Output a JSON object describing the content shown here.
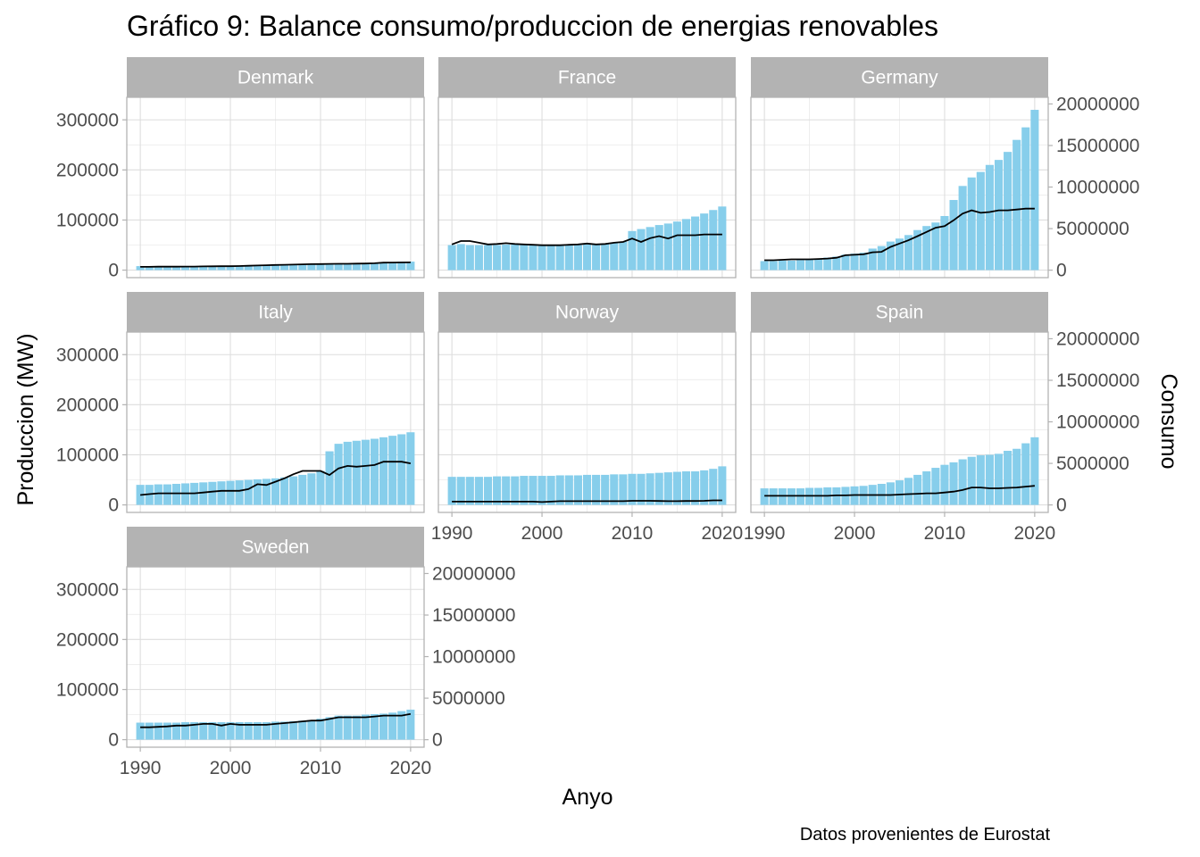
{
  "chart_data": {
    "type": "bar",
    "title": "Gráfico 9: Balance consumo/produccion de energias renovables",
    "xlabel": "Anyo",
    "ylabel": "Produccion (MW)",
    "y2label": "Consumo",
    "caption": "Datos provenientes de Eurostat",
    "xlim": [
      1988.5,
      2021.5
    ],
    "ylim": [
      -15000,
      345000
    ],
    "y2lim": [
      -900000,
      20800000
    ],
    "x_ticks": [
      1990,
      2000,
      2010,
      2020
    ],
    "y_ticks": [
      0,
      100000,
      200000,
      300000
    ],
    "y2_ticks": [
      0,
      5000000,
      10000000,
      15000000,
      20000000
    ],
    "x_tick_labels": [
      "1990",
      "2000",
      "2010",
      "2020"
    ],
    "y_tick_labels": [
      "0",
      "100000",
      "200000",
      "300000"
    ],
    "y2_tick_labels": [
      "0",
      "5000000",
      "10000000",
      "15000000",
      "20000000"
    ],
    "years": [
      1990,
      1991,
      1992,
      1993,
      1994,
      1995,
      1996,
      1997,
      1998,
      1999,
      2000,
      2001,
      2002,
      2003,
      2004,
      2005,
      2006,
      2007,
      2008,
      2009,
      2010,
      2011,
      2012,
      2013,
      2014,
      2015,
      2016,
      2017,
      2018,
      2019,
      2020
    ],
    "bar_color": "#87CEEB",
    "line_color": "#000000",
    "grid": true,
    "panels": [
      {
        "country": "Denmark",
        "production": [
          8000,
          8000,
          8000,
          8000,
          8000,
          8000,
          8000,
          9000,
          9000,
          9000,
          9000,
          9000,
          10000,
          10000,
          10000,
          10000,
          11000,
          11000,
          11000,
          12000,
          12000,
          12000,
          12000,
          12000,
          12000,
          13000,
          14000,
          16000,
          16000,
          17000,
          17000
        ],
        "consumption": [
          400000,
          400000,
          420000,
          420000,
          420000,
          430000,
          430000,
          450000,
          460000,
          470000,
          480000,
          500000,
          530000,
          560000,
          590000,
          630000,
          650000,
          670000,
          700000,
          720000,
          730000,
          750000,
          760000,
          770000,
          790000,
          800000,
          830000,
          900000,
          920000,
          930000,
          940000
        ]
      },
      {
        "country": "France",
        "production": [
          50000,
          52000,
          50000,
          50000,
          50000,
          50000,
          51000,
          51000,
          51000,
          50000,
          50000,
          49000,
          49000,
          50000,
          50000,
          51000,
          52000,
          53000,
          55000,
          57000,
          78000,
          82000,
          86000,
          90000,
          93000,
          97000,
          102000,
          107000,
          113000,
          120000,
          127000
        ],
        "consumption": [
          3100000,
          3500000,
          3500000,
          3300000,
          3100000,
          3150000,
          3250000,
          3150000,
          3100000,
          3050000,
          3000000,
          3000000,
          3000000,
          3050000,
          3100000,
          3200000,
          3100000,
          3150000,
          3300000,
          3400000,
          3800000,
          3400000,
          3850000,
          4100000,
          3800000,
          4200000,
          4200000,
          4200000,
          4300000,
          4300000,
          4300000
        ]
      },
      {
        "country": "Germany",
        "production": [
          18000,
          18000,
          19000,
          19000,
          20000,
          21000,
          22000,
          25000,
          27000,
          31000,
          33000,
          35000,
          43000,
          48000,
          57000,
          63000,
          70000,
          80000,
          88000,
          95000,
          108000,
          140000,
          168000,
          185000,
          196000,
          210000,
          220000,
          236000,
          260000,
          285000,
          320000
        ],
        "consumption": [
          1200000,
          1200000,
          1250000,
          1300000,
          1300000,
          1300000,
          1350000,
          1400000,
          1500000,
          1800000,
          1850000,
          1900000,
          2150000,
          2200000,
          2800000,
          3200000,
          3600000,
          4100000,
          4600000,
          5100000,
          5300000,
          6000000,
          6800000,
          7200000,
          6900000,
          7000000,
          7200000,
          7200000,
          7300000,
          7400000,
          7400000
        ]
      },
      {
        "country": "Italy",
        "production": [
          40000,
          40000,
          41000,
          41000,
          42000,
          43000,
          44000,
          45000,
          46000,
          47000,
          48000,
          49000,
          50000,
          51000,
          52000,
          53000,
          55000,
          57000,
          60000,
          63000,
          68000,
          107000,
          122000,
          126000,
          128000,
          130000,
          132000,
          135000,
          138000,
          141000,
          145000
        ],
        "consumption": [
          1200000,
          1300000,
          1400000,
          1400000,
          1400000,
          1400000,
          1400000,
          1500000,
          1600000,
          1700000,
          1700000,
          1700000,
          1900000,
          2500000,
          2400000,
          2800000,
          3200000,
          3700000,
          4100000,
          4100000,
          4100000,
          3600000,
          4400000,
          4700000,
          4600000,
          4700000,
          4800000,
          5200000,
          5200000,
          5200000,
          5000000
        ]
      },
      {
        "country": "Norway",
        "production": [
          56000,
          56000,
          56000,
          56000,
          56000,
          57000,
          57000,
          57000,
          58000,
          58000,
          58000,
          58000,
          59000,
          59000,
          59000,
          60000,
          60000,
          60000,
          61000,
          61000,
          62000,
          62000,
          63000,
          64000,
          65000,
          66000,
          67000,
          67000,
          69000,
          72000,
          77000
        ],
        "consumption": [
          400000,
          400000,
          400000,
          400000,
          400000,
          400000,
          400000,
          400000,
          400000,
          400000,
          350000,
          400000,
          450000,
          450000,
          450000,
          450000,
          450000,
          450000,
          450000,
          450000,
          500000,
          500000,
          500000,
          480000,
          450000,
          450000,
          470000,
          480000,
          500000,
          550000,
          550000
        ]
      },
      {
        "country": "Spain",
        "production": [
          33000,
          33000,
          33000,
          33000,
          33000,
          34000,
          34000,
          35000,
          35000,
          36000,
          37000,
          38000,
          40000,
          42000,
          45000,
          49000,
          54000,
          60000,
          67000,
          74000,
          80000,
          85000,
          91000,
          96000,
          99000,
          100000,
          102000,
          108000,
          112000,
          123000,
          135000
        ],
        "consumption": [
          1100000,
          1100000,
          1100000,
          1100000,
          1100000,
          1100000,
          1100000,
          1100000,
          1150000,
          1150000,
          1200000,
          1200000,
          1200000,
          1200000,
          1200000,
          1250000,
          1300000,
          1350000,
          1400000,
          1400000,
          1500000,
          1600000,
          1800000,
          2100000,
          2100000,
          2000000,
          2000000,
          2050000,
          2100000,
          2200000,
          2300000
        ]
      },
      {
        "country": "Sweden",
        "production": [
          34000,
          34000,
          34000,
          34000,
          34000,
          35000,
          35000,
          35000,
          35000,
          35000,
          35000,
          35000,
          35000,
          35000,
          35000,
          36000,
          36000,
          37000,
          38000,
          39000,
          42000,
          45000,
          48000,
          48000,
          48000,
          50000,
          51000,
          52000,
          54000,
          57000,
          60000
        ],
        "consumption": [
          1500000,
          1500000,
          1550000,
          1600000,
          1700000,
          1700000,
          1800000,
          1900000,
          1900000,
          1700000,
          1900000,
          1800000,
          1800000,
          1800000,
          1800000,
          1900000,
          2000000,
          2100000,
          2200000,
          2300000,
          2300000,
          2500000,
          2700000,
          2700000,
          2700000,
          2700000,
          2800000,
          2900000,
          2900000,
          2900000,
          3100000
        ]
      }
    ]
  }
}
